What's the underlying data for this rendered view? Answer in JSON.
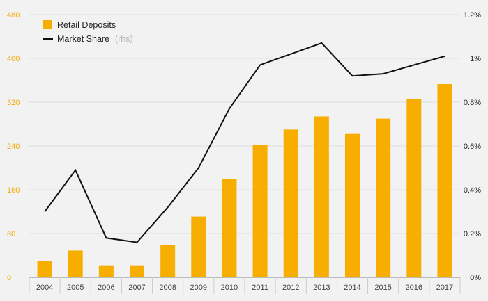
{
  "chart_data": {
    "type": "bar",
    "categories": [
      "2004",
      "2005",
      "2006",
      "2007",
      "2008",
      "2009",
      "2010",
      "2011",
      "2012",
      "2013",
      "2014",
      "2015",
      "2016",
      "2017"
    ],
    "series": [
      {
        "name": "Retail Deposits",
        "type": "bar",
        "axis": "left",
        "color": "#f7ae00",
        "values": [
          30,
          49,
          22,
          22,
          59,
          111,
          180,
          242,
          270,
          294,
          262,
          290,
          326,
          353
        ]
      },
      {
        "name": "Market Share",
        "name_suffix": "(rhs)",
        "type": "line",
        "axis": "right",
        "color": "#111111",
        "values": [
          0.3,
          0.49,
          0.18,
          0.16,
          0.32,
          0.5,
          0.77,
          0.97,
          1.02,
          1.07,
          0.92,
          0.93,
          0.97,
          1.01
        ]
      }
    ],
    "y_left": {
      "ylim": [
        0,
        480
      ],
      "ticks": [
        "0",
        "80",
        "160",
        "240",
        "320",
        "400",
        "480"
      ],
      "tick_values": [
        0,
        80,
        160,
        240,
        320,
        400,
        480
      ]
    },
    "y_right": {
      "ylim": [
        0,
        1.2
      ],
      "ticks": [
        "0%",
        "0.2%",
        "0.4%",
        "0.6%",
        "0.8%",
        "1%",
        "1.2%"
      ],
      "tick_values": [
        0,
        0.2,
        0.4,
        0.6,
        0.8,
        1.0,
        1.2
      ]
    },
    "title": "",
    "xlabel": "",
    "ylabel": "",
    "grid": true,
    "legend_position": "top-left"
  }
}
